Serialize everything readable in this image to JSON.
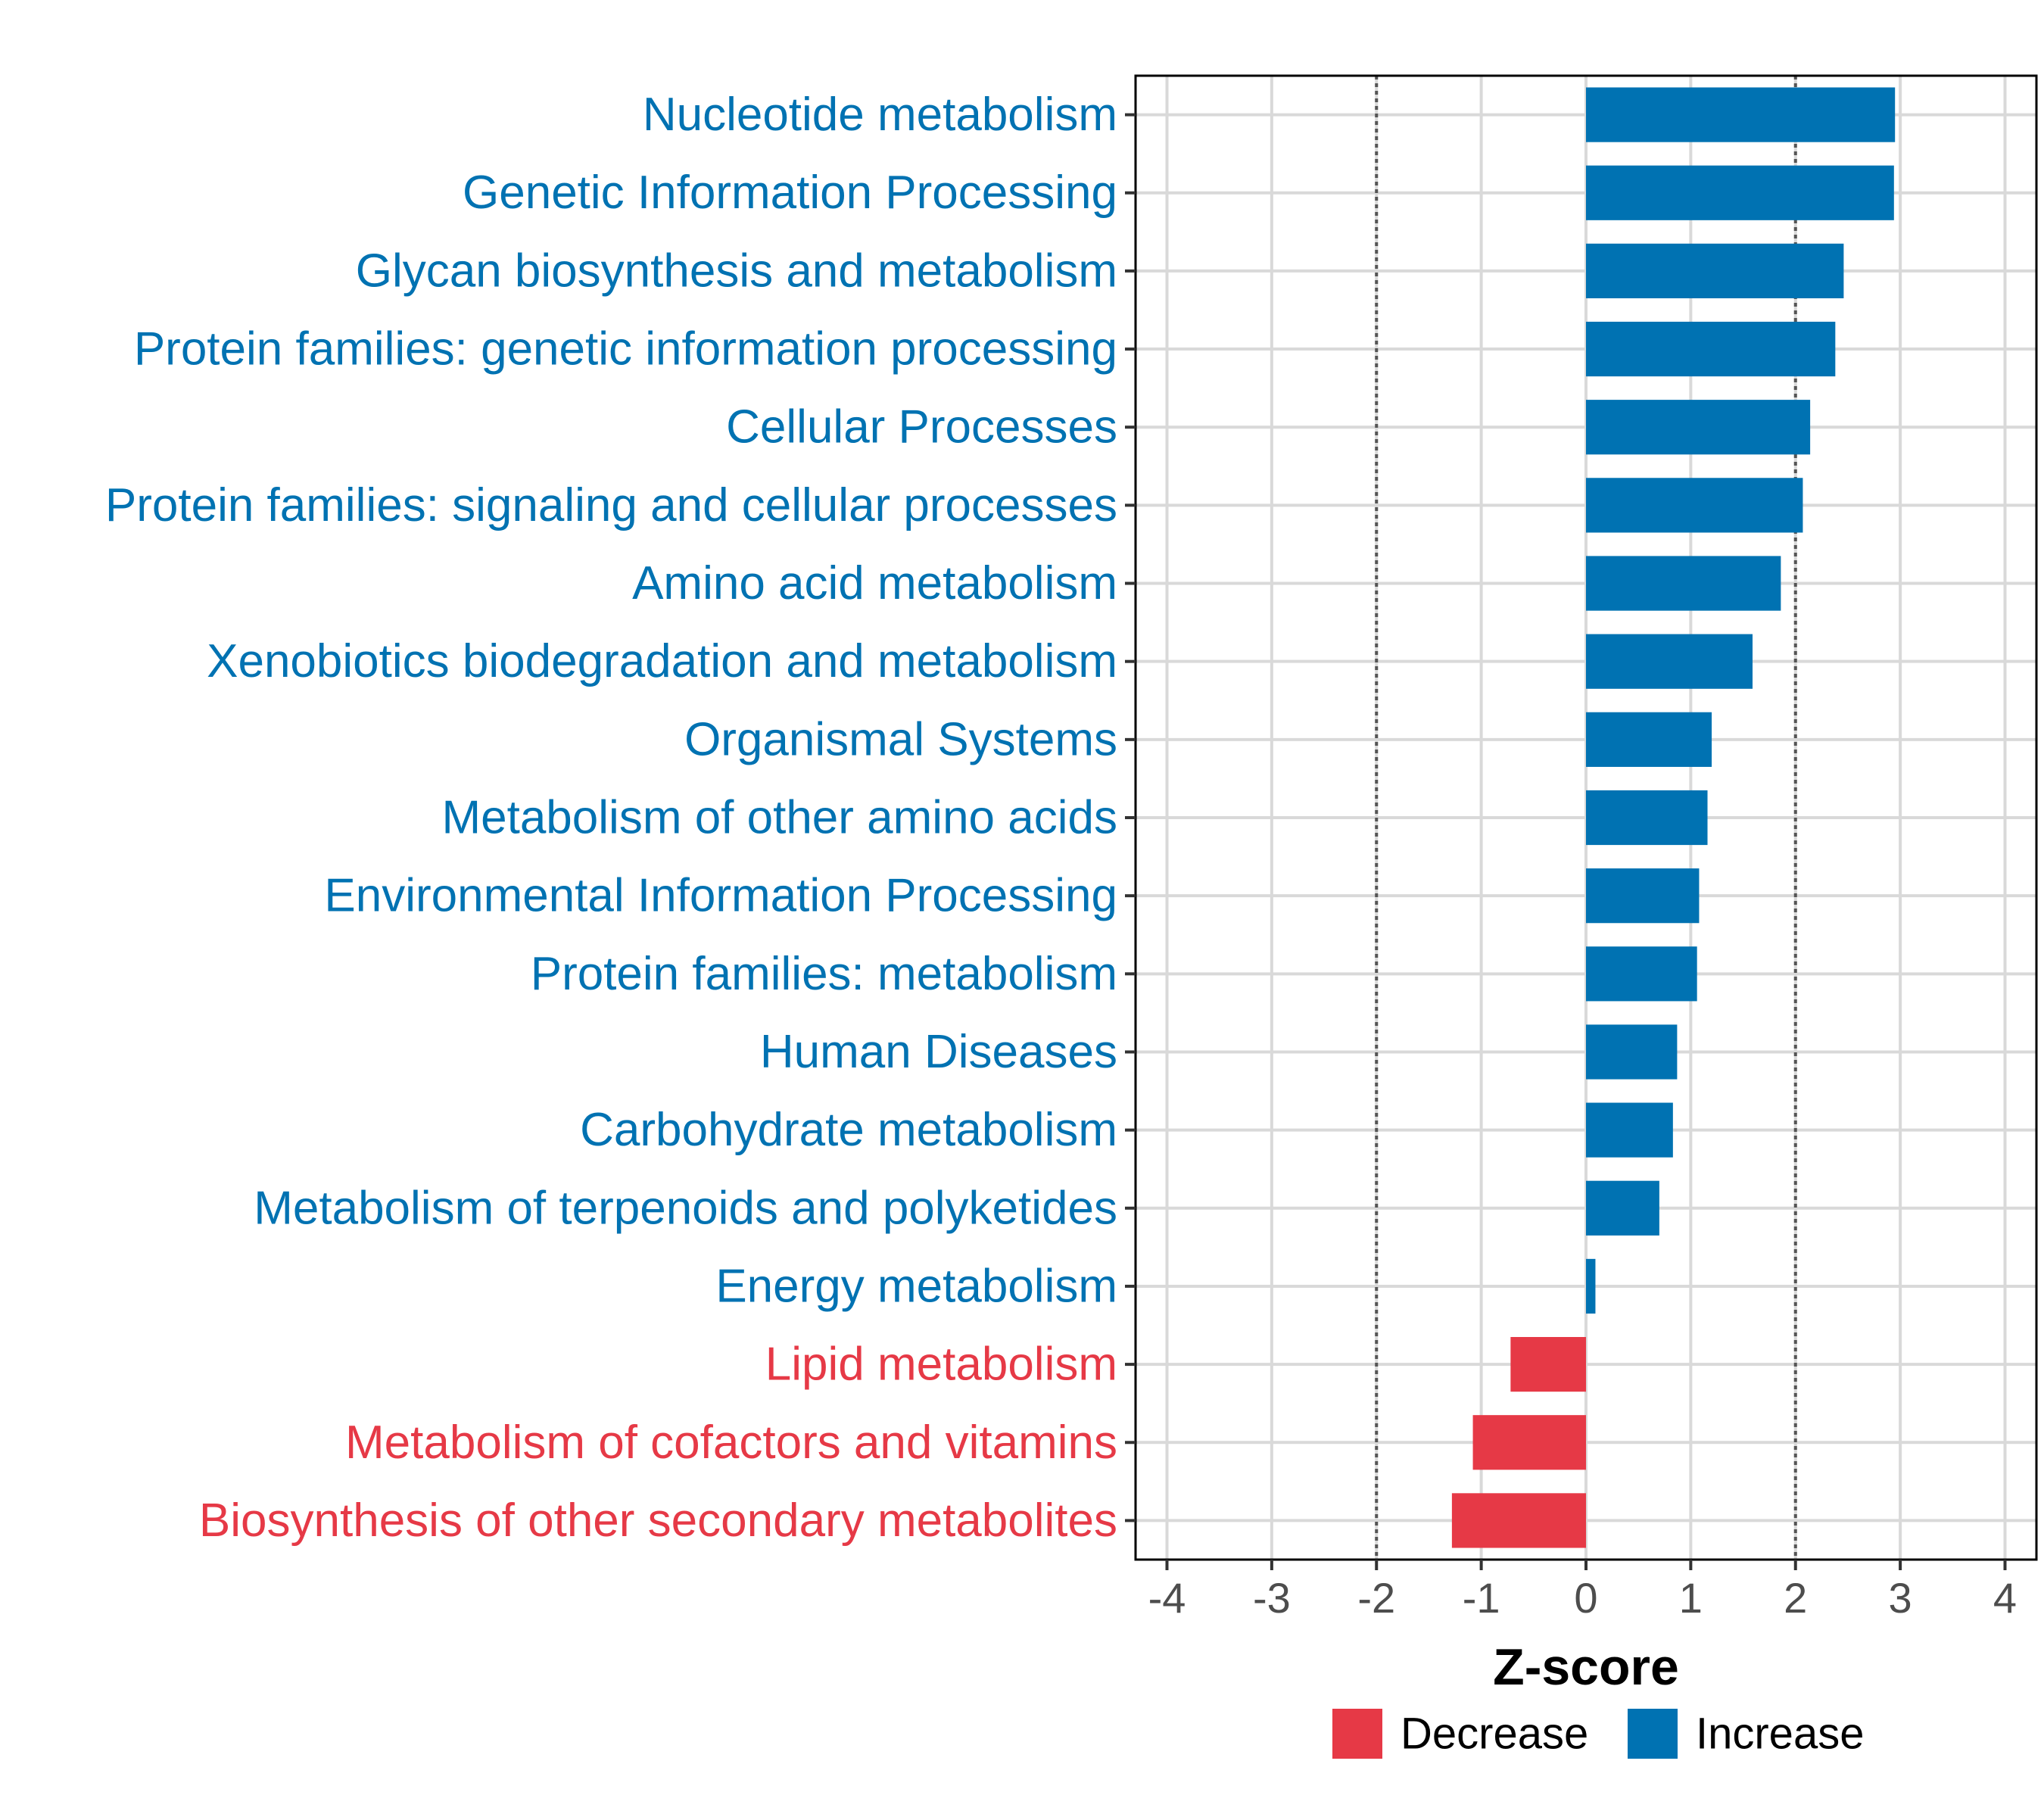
{
  "chart_data": {
    "type": "bar",
    "orientation": "horizontal",
    "title": "",
    "xlabel": "Z-score",
    "ylabel": "",
    "xlim": [
      -4.3,
      4.3
    ],
    "xticks": [
      -4,
      -3,
      -2,
      -1,
      0,
      1,
      2,
      3,
      4
    ],
    "xtick_labels": [
      "-4",
      "-3",
      "-2",
      "-1",
      "0",
      "1",
      "2",
      "3",
      "4"
    ],
    "reference_lines": [
      -2,
      2
    ],
    "grid": true,
    "categories": [
      "Nucleotide metabolism",
      "Genetic Information Processing",
      "Glycan biosynthesis and metabolism",
      "Protein families: genetic information processing",
      "Cellular Processes",
      "Protein families: signaling and cellular processes",
      "Amino acid metabolism",
      "Xenobiotics biodegradation and metabolism",
      "Organismal Systems",
      "Metabolism of other amino acids",
      "Environmental Information Processing",
      "Protein families: metabolism",
      "Human Diseases",
      "Carbohydrate metabolism",
      "Metabolism of terpenoids and polyketides",
      "Energy metabolism",
      "Lipid metabolism",
      "Metabolism of cofactors and vitamins",
      "Biosynthesis of other secondary metabolites"
    ],
    "values": [
      2.95,
      2.94,
      2.46,
      2.38,
      2.14,
      2.07,
      1.86,
      1.59,
      1.2,
      1.16,
      1.08,
      1.06,
      0.87,
      0.83,
      0.7,
      0.09,
      -0.72,
      -1.08,
      -1.28
    ],
    "groups": [
      "Increase",
      "Increase",
      "Increase",
      "Increase",
      "Increase",
      "Increase",
      "Increase",
      "Increase",
      "Increase",
      "Increase",
      "Increase",
      "Increase",
      "Increase",
      "Increase",
      "Increase",
      "Increase",
      "Decrease",
      "Decrease",
      "Decrease"
    ],
    "legend": {
      "position": "bottom",
      "entries": [
        {
          "label": "Decrease",
          "color": "#E63946"
        },
        {
          "label": "Increase",
          "color": "#0072B2"
        }
      ]
    },
    "colors": {
      "Decrease": "#E63946",
      "Increase": "#0072B2"
    }
  }
}
